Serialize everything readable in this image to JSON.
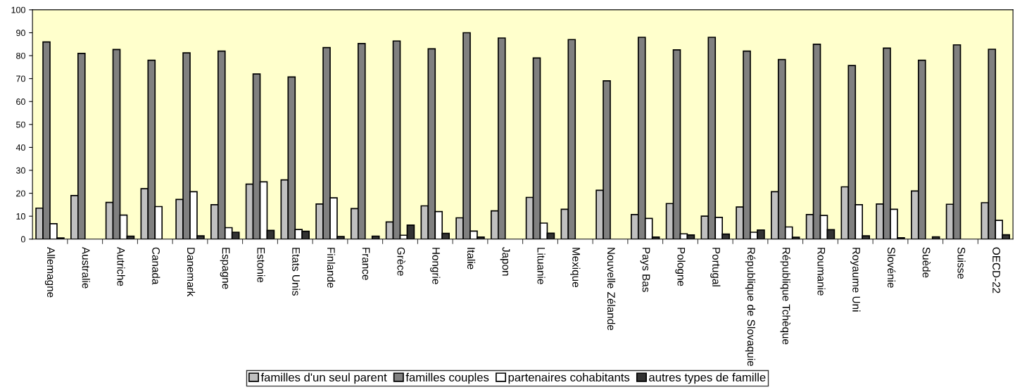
{
  "chart_data": {
    "type": "bar",
    "categories": [
      "Allemagne",
      "Australie",
      "Autriche",
      "Canada",
      "Danemark",
      "Espagne",
      "Estonie",
      "Etats Unis",
      "Finlande",
      "France",
      "Grèce",
      "Hongrie",
      "Italie",
      "Japon",
      "Lituanie",
      "Mexique",
      "Nouvelle Zélande",
      "Pays Bas",
      "Pologne",
      "Portugal",
      "République de Slovaquie",
      "République Tchèque",
      "Roumanie",
      "Royaume Uni",
      "Slovénie",
      "Suède",
      "Suisse",
      "OECD-22"
    ],
    "series": [
      {
        "name": "familles d'un seul parent",
        "color": "#c0c0c0",
        "values": [
          13.5,
          19,
          16,
          22,
          17.3,
          15,
          24,
          25.8,
          15.3,
          13.3,
          7.5,
          14.5,
          9.3,
          12.3,
          18.2,
          13,
          21.3,
          10.7,
          15.5,
          10,
          14,
          20.7,
          10.7,
          22.8,
          15.3,
          21,
          15.2,
          15.9
        ]
      },
      {
        "name": "familles couples",
        "color": "#808080",
        "values": [
          86,
          81,
          82.7,
          78,
          81.2,
          82,
          72,
          70.7,
          83.5,
          85.3,
          86.4,
          83,
          90,
          87.7,
          79,
          87,
          69,
          88,
          82.5,
          88,
          82,
          78.3,
          85,
          75.7,
          83.3,
          78,
          84.7,
          82.8
        ]
      },
      {
        "name": "partenaires cohabitants",
        "color": "#ffffff",
        "values": [
          6.7,
          null,
          10.5,
          14.2,
          20.7,
          5,
          25,
          4.2,
          18,
          null,
          1.7,
          12,
          3.5,
          null,
          7,
          null,
          null,
          9,
          2.3,
          9.5,
          3,
          5.3,
          10.3,
          15,
          13,
          null,
          null,
          8.2
        ]
      },
      {
        "name": "autres types de famille",
        "color": "#333333",
        "values": [
          0.5,
          null,
          1.3,
          null,
          1.4,
          3,
          3.8,
          3.4,
          1.1,
          1.3,
          6.1,
          2.5,
          0.9,
          null,
          2.6,
          null,
          null,
          0.9,
          1.8,
          2.2,
          4,
          0.8,
          4.1,
          1.4,
          0.6,
          1,
          null,
          1.9
        ]
      }
    ],
    "ylim": [
      0,
      100
    ],
    "yticks": [
      0,
      10,
      20,
      30,
      40,
      50,
      60,
      70,
      80,
      90,
      100
    ],
    "grid": false,
    "legend": "bottom"
  }
}
